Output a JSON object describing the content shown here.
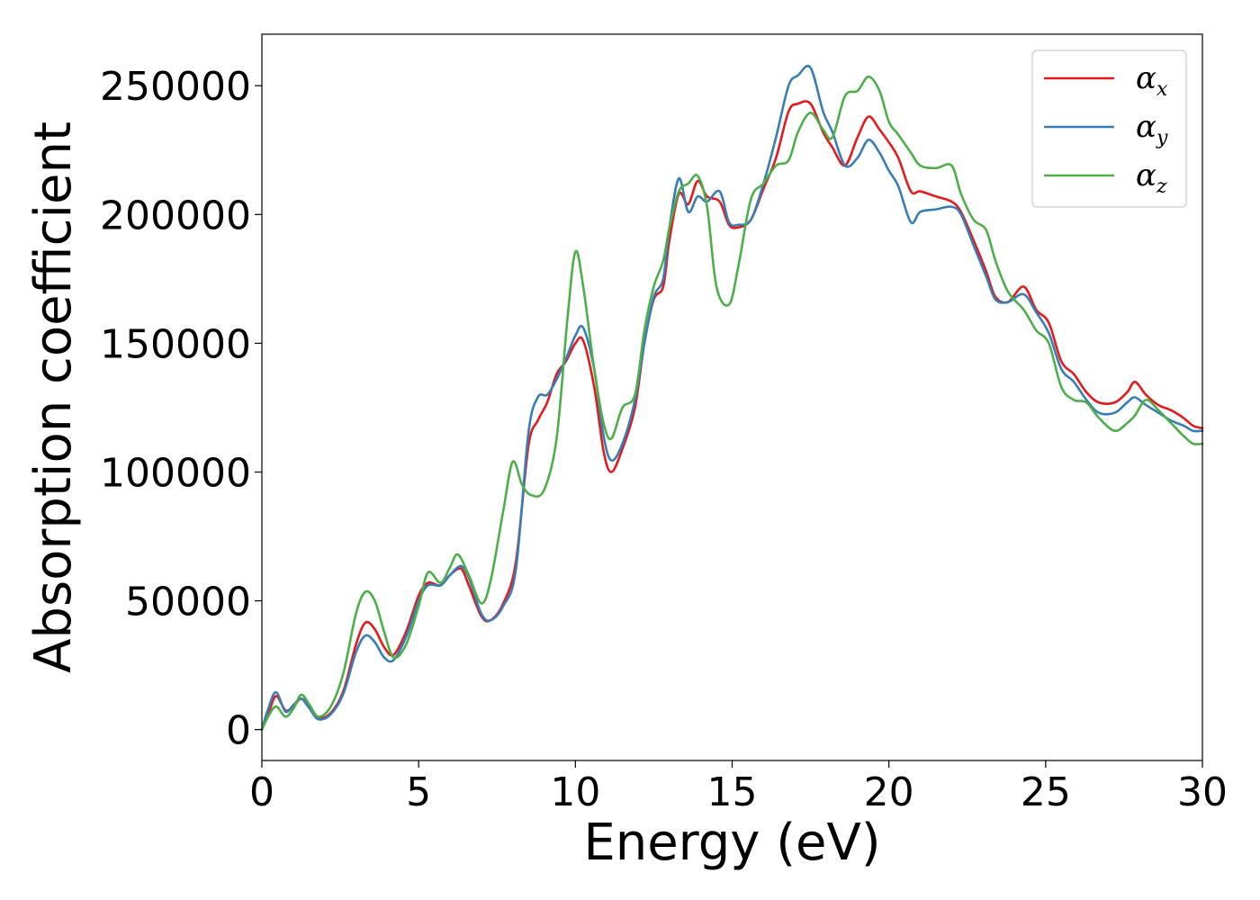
{
  "chart_data": {
    "type": "line",
    "xlabel": "Energy (eV)",
    "ylabel": "Absorption coefficient",
    "xlim": [
      0,
      30
    ],
    "ylim": [
      -12000,
      270000
    ],
    "xticks": [
      0,
      5,
      10,
      15,
      20,
      25,
      30
    ],
    "xtick_labels": [
      "0",
      "5",
      "10",
      "15",
      "20",
      "25",
      "30"
    ],
    "yticks": [
      0,
      50000,
      100000,
      150000,
      200000,
      250000
    ],
    "ytick_labels": [
      "0",
      "50000",
      "100000",
      "150000",
      "200000",
      "250000"
    ],
    "grid": false,
    "legend_position": "top-right",
    "series": [
      {
        "name_base": "α",
        "name_sub": "x",
        "color": "#e41a1c",
        "points": [
          [
            0,
            0
          ],
          [
            0.2,
            6000
          ],
          [
            0.45,
            13000
          ],
          [
            0.75,
            7500
          ],
          [
            1.0,
            9000
          ],
          [
            1.25,
            12000
          ],
          [
            1.5,
            9000
          ],
          [
            1.8,
            4500
          ],
          [
            2.2,
            6500
          ],
          [
            2.6,
            15000
          ],
          [
            3.0,
            33000
          ],
          [
            3.3,
            41500
          ],
          [
            3.6,
            39000
          ],
          [
            3.9,
            32000
          ],
          [
            4.2,
            29000
          ],
          [
            4.6,
            38000
          ],
          [
            5.0,
            52000
          ],
          [
            5.3,
            57000
          ],
          [
            5.7,
            56000
          ],
          [
            6.0,
            60000
          ],
          [
            6.35,
            62500
          ],
          [
            6.6,
            56000
          ],
          [
            7.0,
            44000
          ],
          [
            7.3,
            42500
          ],
          [
            7.7,
            49000
          ],
          [
            8.1,
            65000
          ],
          [
            8.5,
            110000
          ],
          [
            8.8,
            120000
          ],
          [
            9.1,
            127000
          ],
          [
            9.4,
            138000
          ],
          [
            9.7,
            143000
          ],
          [
            10.0,
            150000
          ],
          [
            10.25,
            151000
          ],
          [
            10.6,
            133000
          ],
          [
            10.9,
            108000
          ],
          [
            11.15,
            100000
          ],
          [
            11.5,
            109000
          ],
          [
            11.9,
            125000
          ],
          [
            12.2,
            150000
          ],
          [
            12.5,
            167000
          ],
          [
            12.8,
            172000
          ],
          [
            13.0,
            190000
          ],
          [
            13.3,
            208000
          ],
          [
            13.6,
            204000
          ],
          [
            13.9,
            213000
          ],
          [
            14.2,
            207000
          ],
          [
            14.6,
            205000
          ],
          [
            14.9,
            196000
          ],
          [
            15.2,
            195000
          ],
          [
            15.6,
            198000
          ],
          [
            16.0,
            210000
          ],
          [
            16.4,
            222000
          ],
          [
            16.8,
            240000
          ],
          [
            17.1,
            243000
          ],
          [
            17.5,
            243000
          ],
          [
            17.9,
            232000
          ],
          [
            18.2,
            226000
          ],
          [
            18.6,
            219000
          ],
          [
            19.0,
            230000
          ],
          [
            19.35,
            238000
          ],
          [
            19.7,
            233000
          ],
          [
            20.0,
            228000
          ],
          [
            20.3,
            222000
          ],
          [
            20.7,
            209000
          ],
          [
            21.0,
            209000
          ],
          [
            21.5,
            207000
          ],
          [
            22.0,
            205000
          ],
          [
            22.3,
            201000
          ],
          [
            22.7,
            190000
          ],
          [
            23.1,
            178000
          ],
          [
            23.4,
            168000
          ],
          [
            23.8,
            166000
          ],
          [
            24.3,
            172000
          ],
          [
            24.7,
            163000
          ],
          [
            25.1,
            158000
          ],
          [
            25.5,
            143000
          ],
          [
            25.9,
            138000
          ],
          [
            26.3,
            131000
          ],
          [
            26.7,
            127000
          ],
          [
            27.2,
            127000
          ],
          [
            27.6,
            131000
          ],
          [
            27.85,
            135000
          ],
          [
            28.2,
            130000
          ],
          [
            28.6,
            126000
          ],
          [
            29.0,
            124000
          ],
          [
            29.4,
            121000
          ],
          [
            29.7,
            118000
          ],
          [
            30,
            117000
          ]
        ]
      },
      {
        "name_base": "α",
        "name_sub": "y",
        "color": "#377eb8",
        "points": [
          [
            0,
            0
          ],
          [
            0.2,
            8000
          ],
          [
            0.45,
            14500
          ],
          [
            0.75,
            7000
          ],
          [
            1.0,
            9500
          ],
          [
            1.25,
            12000
          ],
          [
            1.5,
            8500
          ],
          [
            1.8,
            4000
          ],
          [
            2.2,
            6000
          ],
          [
            2.6,
            14000
          ],
          [
            3.0,
            30000
          ],
          [
            3.3,
            36500
          ],
          [
            3.6,
            34000
          ],
          [
            3.9,
            28000
          ],
          [
            4.2,
            27000
          ],
          [
            4.6,
            36000
          ],
          [
            5.0,
            50000
          ],
          [
            5.3,
            56000
          ],
          [
            5.7,
            56000
          ],
          [
            6.0,
            60000
          ],
          [
            6.35,
            63500
          ],
          [
            6.6,
            59000
          ],
          [
            7.0,
            45000
          ],
          [
            7.3,
            42500
          ],
          [
            7.7,
            48000
          ],
          [
            8.1,
            62000
          ],
          [
            8.5,
            115000
          ],
          [
            8.8,
            129000
          ],
          [
            9.1,
            130000
          ],
          [
            9.4,
            136000
          ],
          [
            9.7,
            144000
          ],
          [
            10.0,
            153000
          ],
          [
            10.25,
            156000
          ],
          [
            10.6,
            140000
          ],
          [
            10.9,
            114000
          ],
          [
            11.15,
            104500
          ],
          [
            11.5,
            111000
          ],
          [
            11.9,
            128000
          ],
          [
            12.2,
            150000
          ],
          [
            12.5,
            168000
          ],
          [
            12.8,
            175000
          ],
          [
            13.0,
            195000
          ],
          [
            13.3,
            214000
          ],
          [
            13.6,
            201000
          ],
          [
            13.9,
            207000
          ],
          [
            14.2,
            205000
          ],
          [
            14.6,
            209000
          ],
          [
            14.9,
            197000
          ],
          [
            15.2,
            196000
          ],
          [
            15.6,
            198000
          ],
          [
            16.0,
            212000
          ],
          [
            16.4,
            230000
          ],
          [
            16.8,
            250000
          ],
          [
            17.1,
            254000
          ],
          [
            17.5,
            257000
          ],
          [
            17.9,
            240000
          ],
          [
            18.2,
            232000
          ],
          [
            18.6,
            219000
          ],
          [
            19.0,
            222000
          ],
          [
            19.35,
            229000
          ],
          [
            19.7,
            224000
          ],
          [
            20.0,
            217000
          ],
          [
            20.3,
            211000
          ],
          [
            20.7,
            197000
          ],
          [
            21.0,
            201000
          ],
          [
            21.5,
            202000
          ],
          [
            22.0,
            203000
          ],
          [
            22.3,
            200000
          ],
          [
            22.7,
            188000
          ],
          [
            23.1,
            176000
          ],
          [
            23.4,
            167000
          ],
          [
            23.8,
            166000
          ],
          [
            24.3,
            169000
          ],
          [
            24.7,
            162000
          ],
          [
            25.1,
            154000
          ],
          [
            25.5,
            140000
          ],
          [
            25.9,
            135000
          ],
          [
            26.3,
            128000
          ],
          [
            26.7,
            123000
          ],
          [
            27.2,
            123000
          ],
          [
            27.6,
            127000
          ],
          [
            27.85,
            129000
          ],
          [
            28.2,
            126000
          ],
          [
            28.6,
            123000
          ],
          [
            29.0,
            120000
          ],
          [
            29.4,
            118000
          ],
          [
            29.7,
            116000
          ],
          [
            30,
            116000
          ]
        ]
      },
      {
        "name_base": "α",
        "name_sub": "z",
        "color": "#4daf4a",
        "points": [
          [
            0,
            0
          ],
          [
            0.2,
            5000
          ],
          [
            0.45,
            9000
          ],
          [
            0.75,
            5000
          ],
          [
            1.0,
            8000
          ],
          [
            1.25,
            13500
          ],
          [
            1.5,
            10000
          ],
          [
            1.8,
            5000
          ],
          [
            2.2,
            9000
          ],
          [
            2.6,
            22000
          ],
          [
            3.0,
            45000
          ],
          [
            3.3,
            53500
          ],
          [
            3.6,
            50000
          ],
          [
            3.9,
            38000
          ],
          [
            4.2,
            28000
          ],
          [
            4.6,
            33000
          ],
          [
            5.0,
            48000
          ],
          [
            5.3,
            61000
          ],
          [
            5.7,
            57000
          ],
          [
            6.0,
            63000
          ],
          [
            6.25,
            68000
          ],
          [
            6.6,
            60000
          ],
          [
            7.0,
            49000
          ],
          [
            7.3,
            58000
          ],
          [
            7.7,
            85000
          ],
          [
            8.0,
            104000
          ],
          [
            8.3,
            95000
          ],
          [
            8.6,
            91000
          ],
          [
            9.0,
            93000
          ],
          [
            9.4,
            113000
          ],
          [
            9.75,
            160000
          ],
          [
            10.0,
            185500
          ],
          [
            10.25,
            172000
          ],
          [
            10.6,
            140000
          ],
          [
            10.9,
            119000
          ],
          [
            11.15,
            113000
          ],
          [
            11.5,
            125000
          ],
          [
            11.9,
            130000
          ],
          [
            12.2,
            155000
          ],
          [
            12.5,
            172000
          ],
          [
            12.8,
            182000
          ],
          [
            13.0,
            195000
          ],
          [
            13.3,
            209000
          ],
          [
            13.6,
            212000
          ],
          [
            13.9,
            215000
          ],
          [
            14.2,
            203000
          ],
          [
            14.5,
            172000
          ],
          [
            14.9,
            165000
          ],
          [
            15.2,
            180000
          ],
          [
            15.6,
            206000
          ],
          [
            16.0,
            212000
          ],
          [
            16.4,
            219000
          ],
          [
            16.8,
            221000
          ],
          [
            17.1,
            232000
          ],
          [
            17.5,
            239500
          ],
          [
            17.9,
            233000
          ],
          [
            18.2,
            230000
          ],
          [
            18.6,
            246000
          ],
          [
            19.0,
            248000
          ],
          [
            19.35,
            253500
          ],
          [
            19.7,
            248000
          ],
          [
            20.0,
            236000
          ],
          [
            20.3,
            231000
          ],
          [
            20.7,
            224000
          ],
          [
            21.0,
            219000
          ],
          [
            21.5,
            218000
          ],
          [
            22.0,
            219000
          ],
          [
            22.3,
            208000
          ],
          [
            22.7,
            198000
          ],
          [
            23.1,
            194000
          ],
          [
            23.4,
            182000
          ],
          [
            23.8,
            170000
          ],
          [
            24.3,
            163000
          ],
          [
            24.7,
            155000
          ],
          [
            25.1,
            150000
          ],
          [
            25.5,
            133000
          ],
          [
            25.9,
            128000
          ],
          [
            26.3,
            127000
          ],
          [
            26.7,
            121000
          ],
          [
            27.2,
            116000
          ],
          [
            27.6,
            119000
          ],
          [
            27.85,
            122000
          ],
          [
            28.2,
            128000
          ],
          [
            28.6,
            124000
          ],
          [
            29.0,
            119000
          ],
          [
            29.4,
            114000
          ],
          [
            29.7,
            111000
          ],
          [
            30,
            111000
          ]
        ]
      }
    ]
  }
}
